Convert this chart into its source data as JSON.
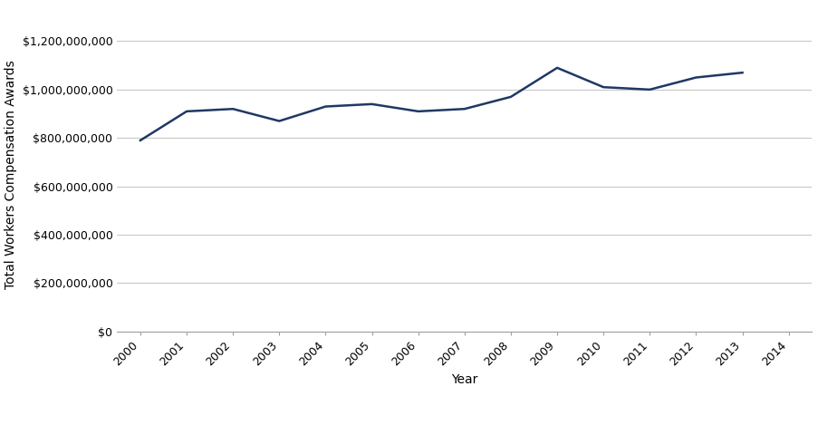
{
  "years": [
    2000,
    2001,
    2002,
    2003,
    2004,
    2005,
    2006,
    2007,
    2008,
    2009,
    2010,
    2011,
    2012,
    2013
  ],
  "values": [
    790000000,
    910000000,
    920000000,
    870000000,
    930000000,
    940000000,
    910000000,
    920000000,
    970000000,
    1090000000,
    1010000000,
    1000000000,
    1050000000,
    1070000000
  ],
  "line_color": "#1F3864",
  "line_width": 1.8,
  "xlabel": "Year",
  "ylabel": "Total Workers Compensation Awards",
  "xlim": [
    1999.5,
    2014.5
  ],
  "ylim": [
    0,
    1300000000
  ],
  "ytick_values": [
    0,
    200000000,
    400000000,
    600000000,
    800000000,
    1000000000,
    1200000000
  ],
  "xtick_values": [
    2000,
    2001,
    2002,
    2003,
    2004,
    2005,
    2006,
    2007,
    2008,
    2009,
    2010,
    2011,
    2012,
    2013,
    2014
  ],
  "background_color": "#ffffff",
  "grid_color": "#c8c8c8",
  "axis_label_fontsize": 10,
  "tick_fontsize": 9
}
